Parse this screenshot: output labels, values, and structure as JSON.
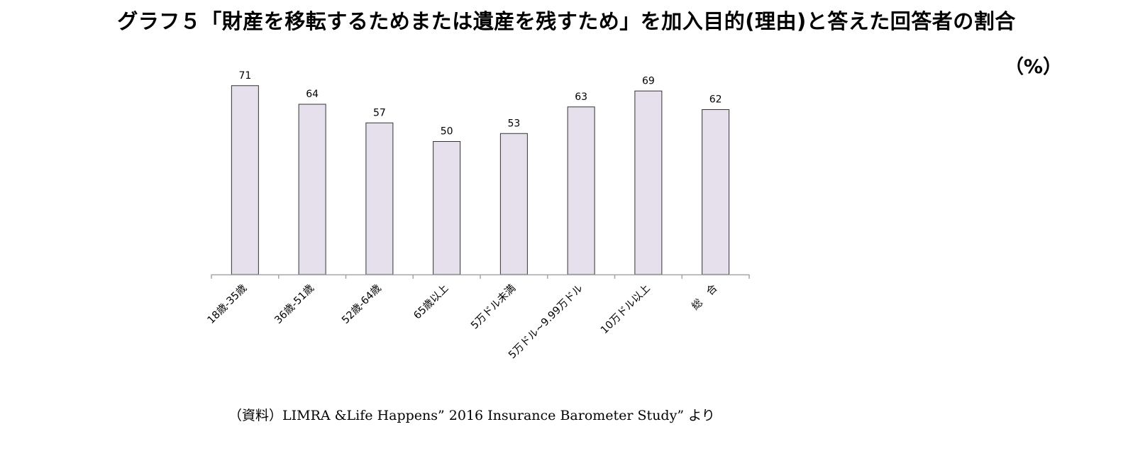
{
  "title": "グラフ５「財産を移転するためまたは遺産を残すため」を加入目的(理由)と答えた回答者の割合",
  "unit_label": "（%）",
  "source_note": "（資料）LIMRA &Life Happens” 2016 Insurance Barometer Study” より",
  "colors": {
    "bar_fill": "#E6E0EC",
    "bar_stroke": "#333333",
    "axis": "#A6A6A6",
    "text": "#000000"
  },
  "chart_data": {
    "type": "bar",
    "categories": [
      "18歳-35歳",
      "36歳-51歳",
      "52歳-64歳",
      "65歳以上",
      "5万ドル未満",
      "5万ドル~9.99万ドル",
      "10万ドル以上",
      "総　合"
    ],
    "values": [
      71,
      64,
      57,
      50,
      53,
      63,
      69,
      62
    ],
    "data_labels": [
      "71",
      "64",
      "57",
      "50",
      "53",
      "63",
      "69",
      "62"
    ],
    "ylim": [
      0,
      75
    ],
    "xlabel": "",
    "ylabel": "",
    "grid": false,
    "legend": "none"
  }
}
